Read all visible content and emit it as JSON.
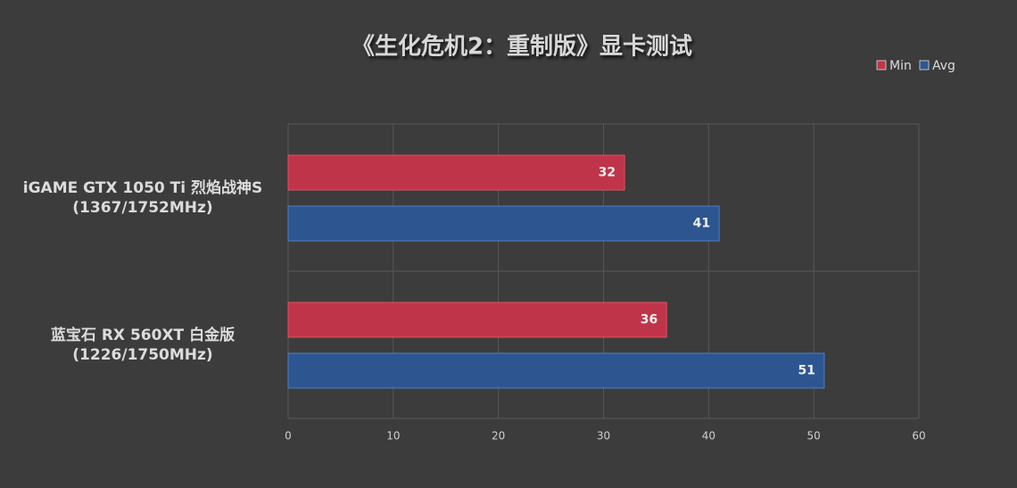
{
  "chart_data": {
    "type": "bar",
    "orientation": "horizontal",
    "title": "《生化危机2：重制版》显卡测试",
    "categories": [
      "iGAME GTX 1050 Ti 烈焰战神S\n(1367/1752MHz)",
      "蓝宝石 RX 560XT 白金版\n(1226/1750MHz)"
    ],
    "series": [
      {
        "name": "Min",
        "color": "#c0344a",
        "values": [
          32,
          36
        ]
      },
      {
        "name": "Avg",
        "color": "#2d5690",
        "values": [
          41,
          51
        ]
      }
    ],
    "xlim": [
      0,
      60
    ],
    "xticks": [
      0,
      10,
      20,
      30,
      40,
      50,
      60
    ],
    "grid": true,
    "legend": "top-right"
  }
}
